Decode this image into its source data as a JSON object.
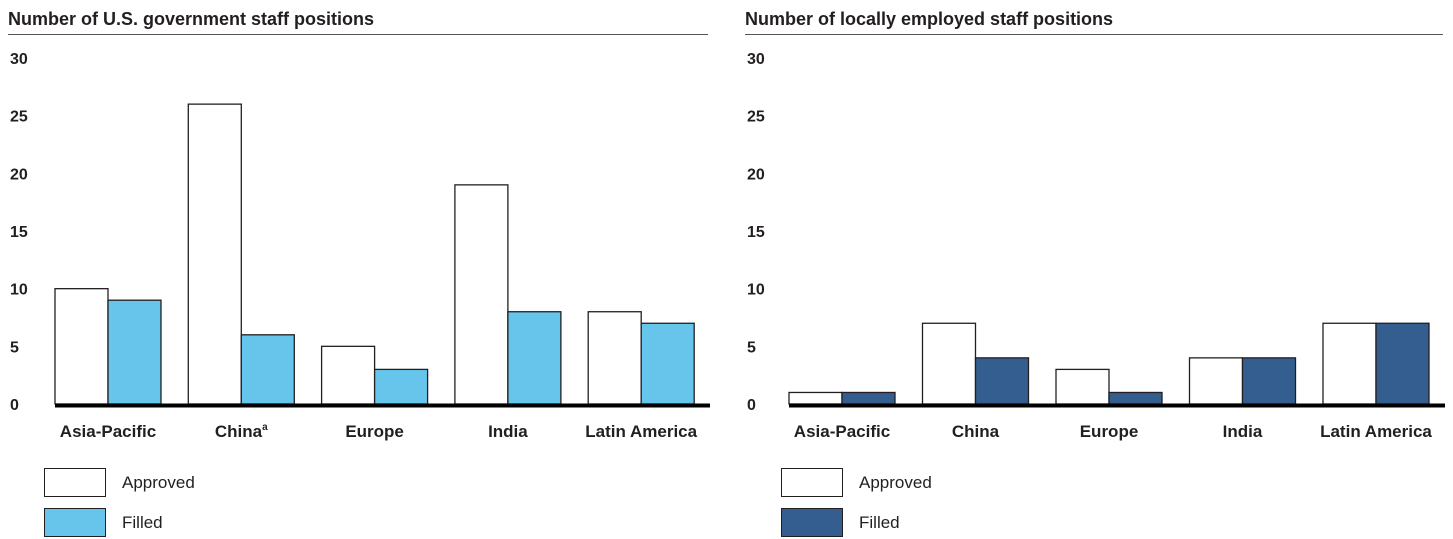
{
  "chart_data": [
    {
      "type": "bar",
      "title": "Number of U.S. government staff positions",
      "categories": [
        "Asia-Pacific",
        "China",
        "Europe",
        "India",
        "Latin America"
      ],
      "category_footnotes": [
        "",
        "a",
        "",
        "",
        ""
      ],
      "series": [
        {
          "name": "Approved",
          "values": [
            10,
            26,
            5,
            19,
            8
          ],
          "color": "#ffffff"
        },
        {
          "name": "Filled",
          "values": [
            9,
            6,
            3,
            8,
            7
          ],
          "color": "#67c5eb"
        }
      ],
      "ylim": [
        0,
        30
      ],
      "yticks": [
        0,
        5,
        10,
        15,
        20,
        25,
        30
      ],
      "grid": false,
      "legend_placement": "bottom-left"
    },
    {
      "type": "bar",
      "title": "Number of locally employed staff positions",
      "categories": [
        "Asia-Pacific",
        "China",
        "Europe",
        "India",
        "Latin America"
      ],
      "category_footnotes": [
        "",
        "",
        "",
        "",
        ""
      ],
      "series": [
        {
          "name": "Approved",
          "values": [
            1,
            7,
            3,
            4,
            7
          ],
          "color": "#ffffff"
        },
        {
          "name": "Filled",
          "values": [
            1,
            4,
            1,
            4,
            7
          ],
          "color": "#335e8f"
        }
      ],
      "ylim": [
        0,
        30
      ],
      "yticks": [
        0,
        5,
        10,
        15,
        20,
        25,
        30
      ],
      "grid": false,
      "legend_placement": "bottom-left"
    }
  ]
}
